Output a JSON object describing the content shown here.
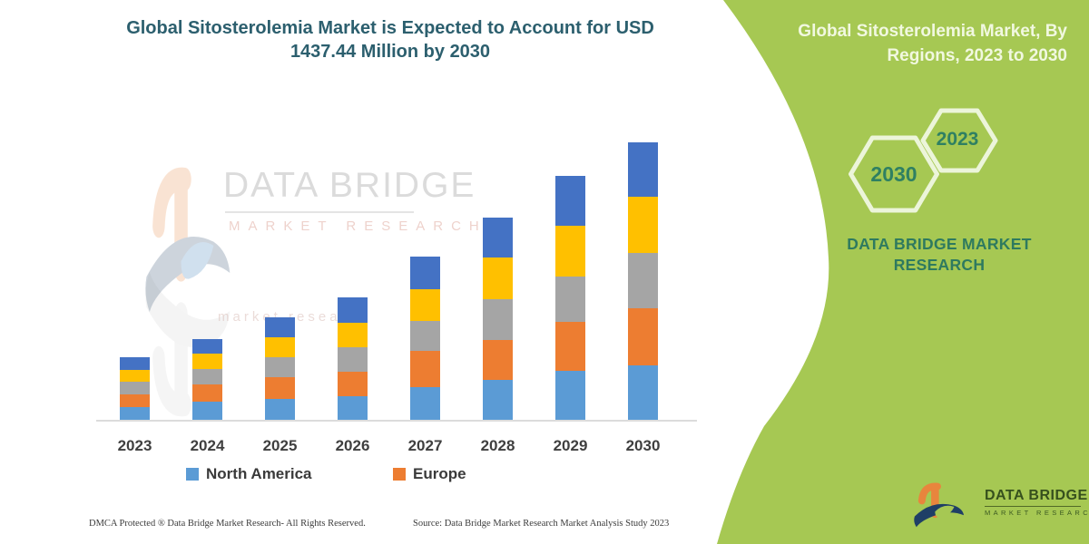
{
  "left_panel": {
    "title": "Global Sitosterolemia Market is Expected to Account for USD 1437.44 Million by 2030",
    "watermark": {
      "brand": "DATA BRIDGE",
      "sub": "MARKET RESEARCH",
      "mid_text": "market research"
    },
    "footer": {
      "dmca": "DMCA Protected ® Data Bridge Market Research-  All Rights Reserved.",
      "source": "Source: Data Bridge Market Research  Market Analysis Study 2023"
    }
  },
  "right_panel": {
    "title": "Global Sitosterolemia Market, By Regions, 2023 to 2030",
    "hexagon_badges": [
      {
        "label": "2030"
      },
      {
        "label": "2023"
      }
    ],
    "brand_text": "DATA BRIDGE MARKET RESEARCH",
    "logo": {
      "brand": "DATA BRIDGE",
      "sub": "MARKET RESEARCH"
    }
  },
  "chart_data": {
    "type": "bar",
    "stacked": true,
    "title": "",
    "xlabel": "",
    "ylabel": "",
    "units": "USD Million (estimated from bar heights; 2030 total = 1437.44 per title)",
    "grid": false,
    "legend_position": "bottom",
    "categories": [
      "2023",
      "2024",
      "2025",
      "2026",
      "2027",
      "2028",
      "2029",
      "2030"
    ],
    "series": [
      {
        "name": "North America",
        "color": "#5b9bd5",
        "values": [
          66,
          94,
          108,
          122,
          169,
          207,
          254,
          282
        ]
      },
      {
        "name": "Europe",
        "color": "#ed7d31",
        "values": [
          66,
          88,
          114,
          127,
          188,
          207,
          254,
          296
        ]
      },
      {
        "name": "Unlabeled (gray)",
        "color": "#a5a5a5",
        "values": [
          66,
          80,
          103,
          127,
          155,
          211,
          235,
          287
        ]
      },
      {
        "name": "Unlabeled (yellow)",
        "color": "#ffc000",
        "values": [
          61,
          80,
          103,
          127,
          164,
          216,
          262,
          291
        ]
      },
      {
        "name": "Unlabeled (dark blue)",
        "color": "#4472c4",
        "values": [
          66,
          75,
          103,
          130,
          169,
          207,
          257,
          281
        ]
      }
    ],
    "legend": [
      "North America",
      "Europe"
    ],
    "totals_estimated": [
      325,
      417,
      531,
      633,
      845,
      1048,
      1262,
      1437
    ]
  },
  "colors": {
    "green_panel": "#a6c853",
    "title_teal": "#2c5f6e",
    "panel_title_text": "#f1f8e0",
    "brand_teal": "#2e7a5f",
    "hexagon_stroke": "#ecf5da",
    "logo_orange": "#e8853d",
    "logo_navy": "#1f3f66",
    "axis_line": "#dcdcdc"
  }
}
